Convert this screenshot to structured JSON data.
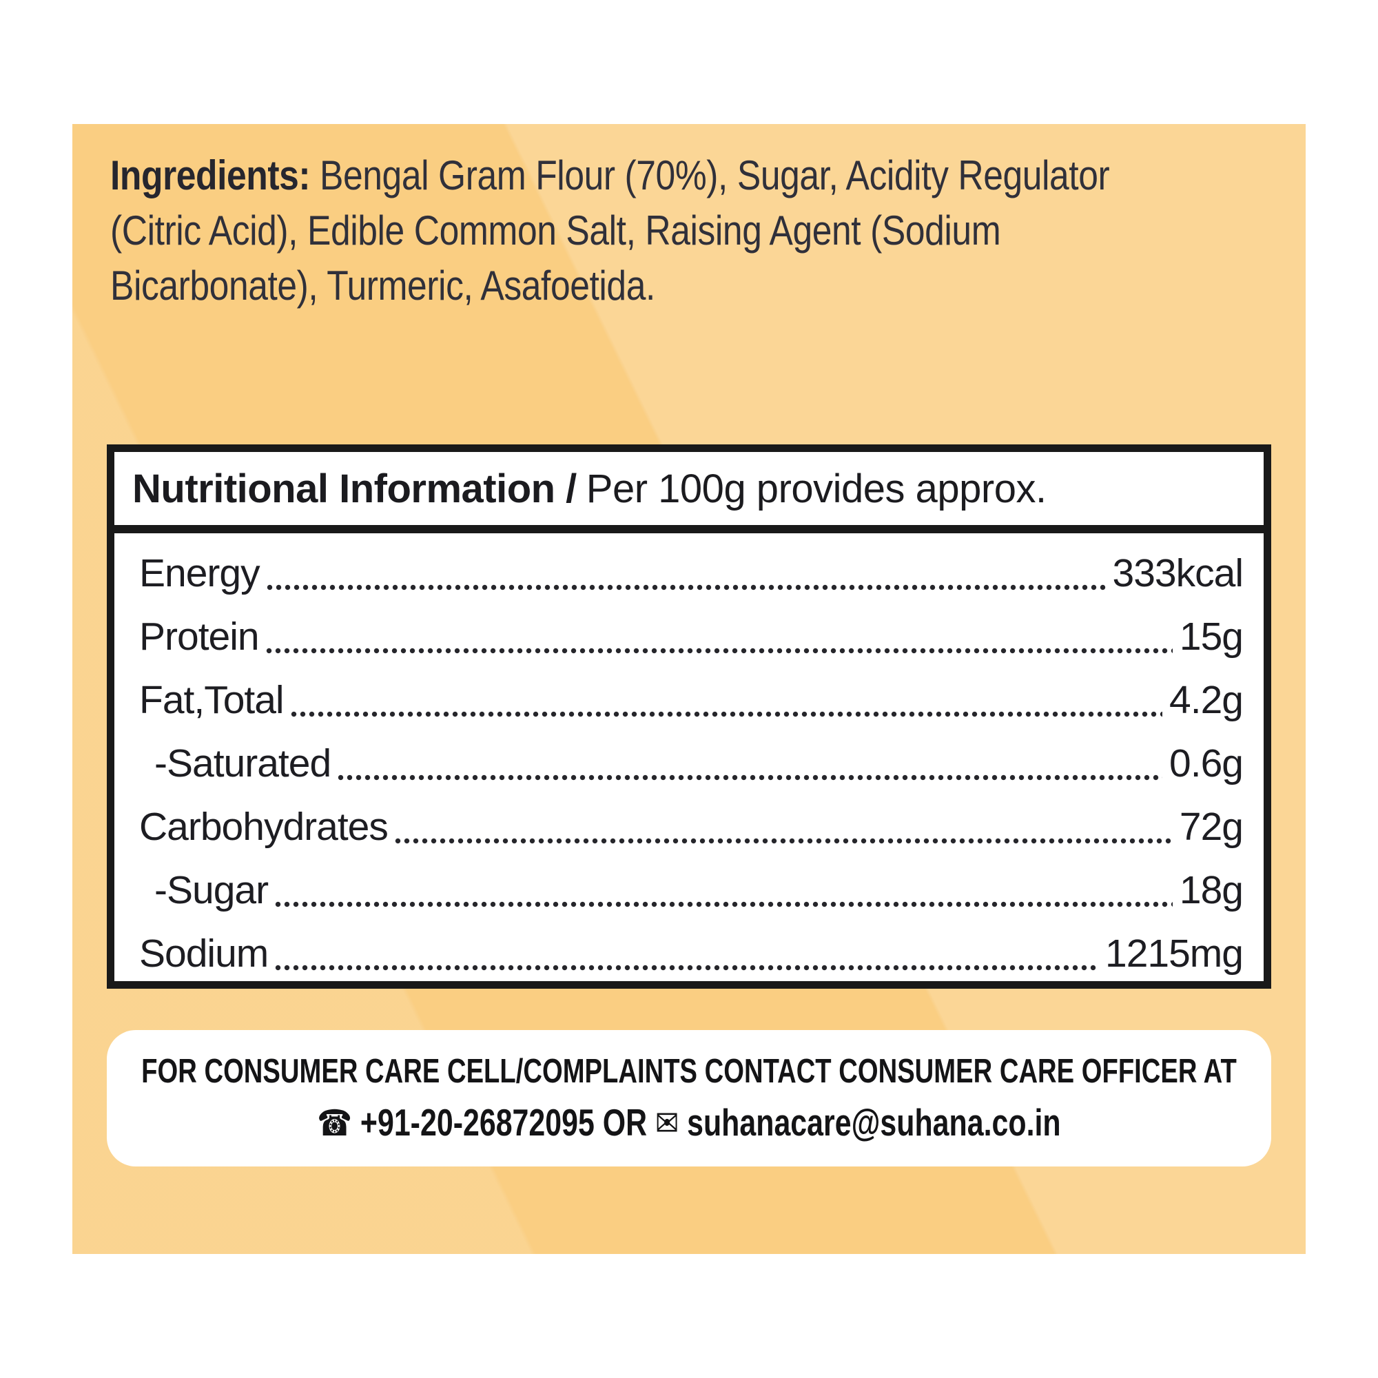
{
  "colors": {
    "label_bg": "#face82",
    "box_border": "#191919",
    "box_bg": "#ffffff",
    "text_dark": "#1d1d22"
  },
  "ingredients": {
    "line1_bold": "Ingredients:",
    "line1_rest": " Bengal Gram Flour (70%), Sugar, Acidity Regulator",
    "line2": "(Citric Acid), Edible Common Salt, Raising Agent (Sodium",
    "line3": "Bicarbonate), Turmeric, Asafoetida."
  },
  "nutrition": {
    "title_bold": "Nutritional Information /",
    "title_regular": "Per 100g provides approx.",
    "rows": [
      {
        "label": "Energy",
        "value": "333kcal",
        "indent": false
      },
      {
        "label": "Protein",
        "value": "15g",
        "indent": false
      },
      {
        "label": "Fat,Total",
        "value": "4.2g",
        "indent": false
      },
      {
        "label": "-Saturated",
        "value": "0.6g",
        "indent": true
      },
      {
        "label": "Carbohydrates",
        "value": "72g",
        "indent": false
      },
      {
        "label": "-Sugar",
        "value": "18g",
        "indent": true
      },
      {
        "label": "Sodium",
        "value": "1215mg",
        "indent": false
      }
    ]
  },
  "contact": {
    "line1": "FOR CONSUMER CARE CELL/COMPLAINTS CONTACT CONSUMER CARE OFFICER AT",
    "phone_icon": "☎",
    "phone": "+91-20-26872095",
    "separator": "OR",
    "email_icon": "✉",
    "email": "suhanacare@suhana.co.in"
  }
}
